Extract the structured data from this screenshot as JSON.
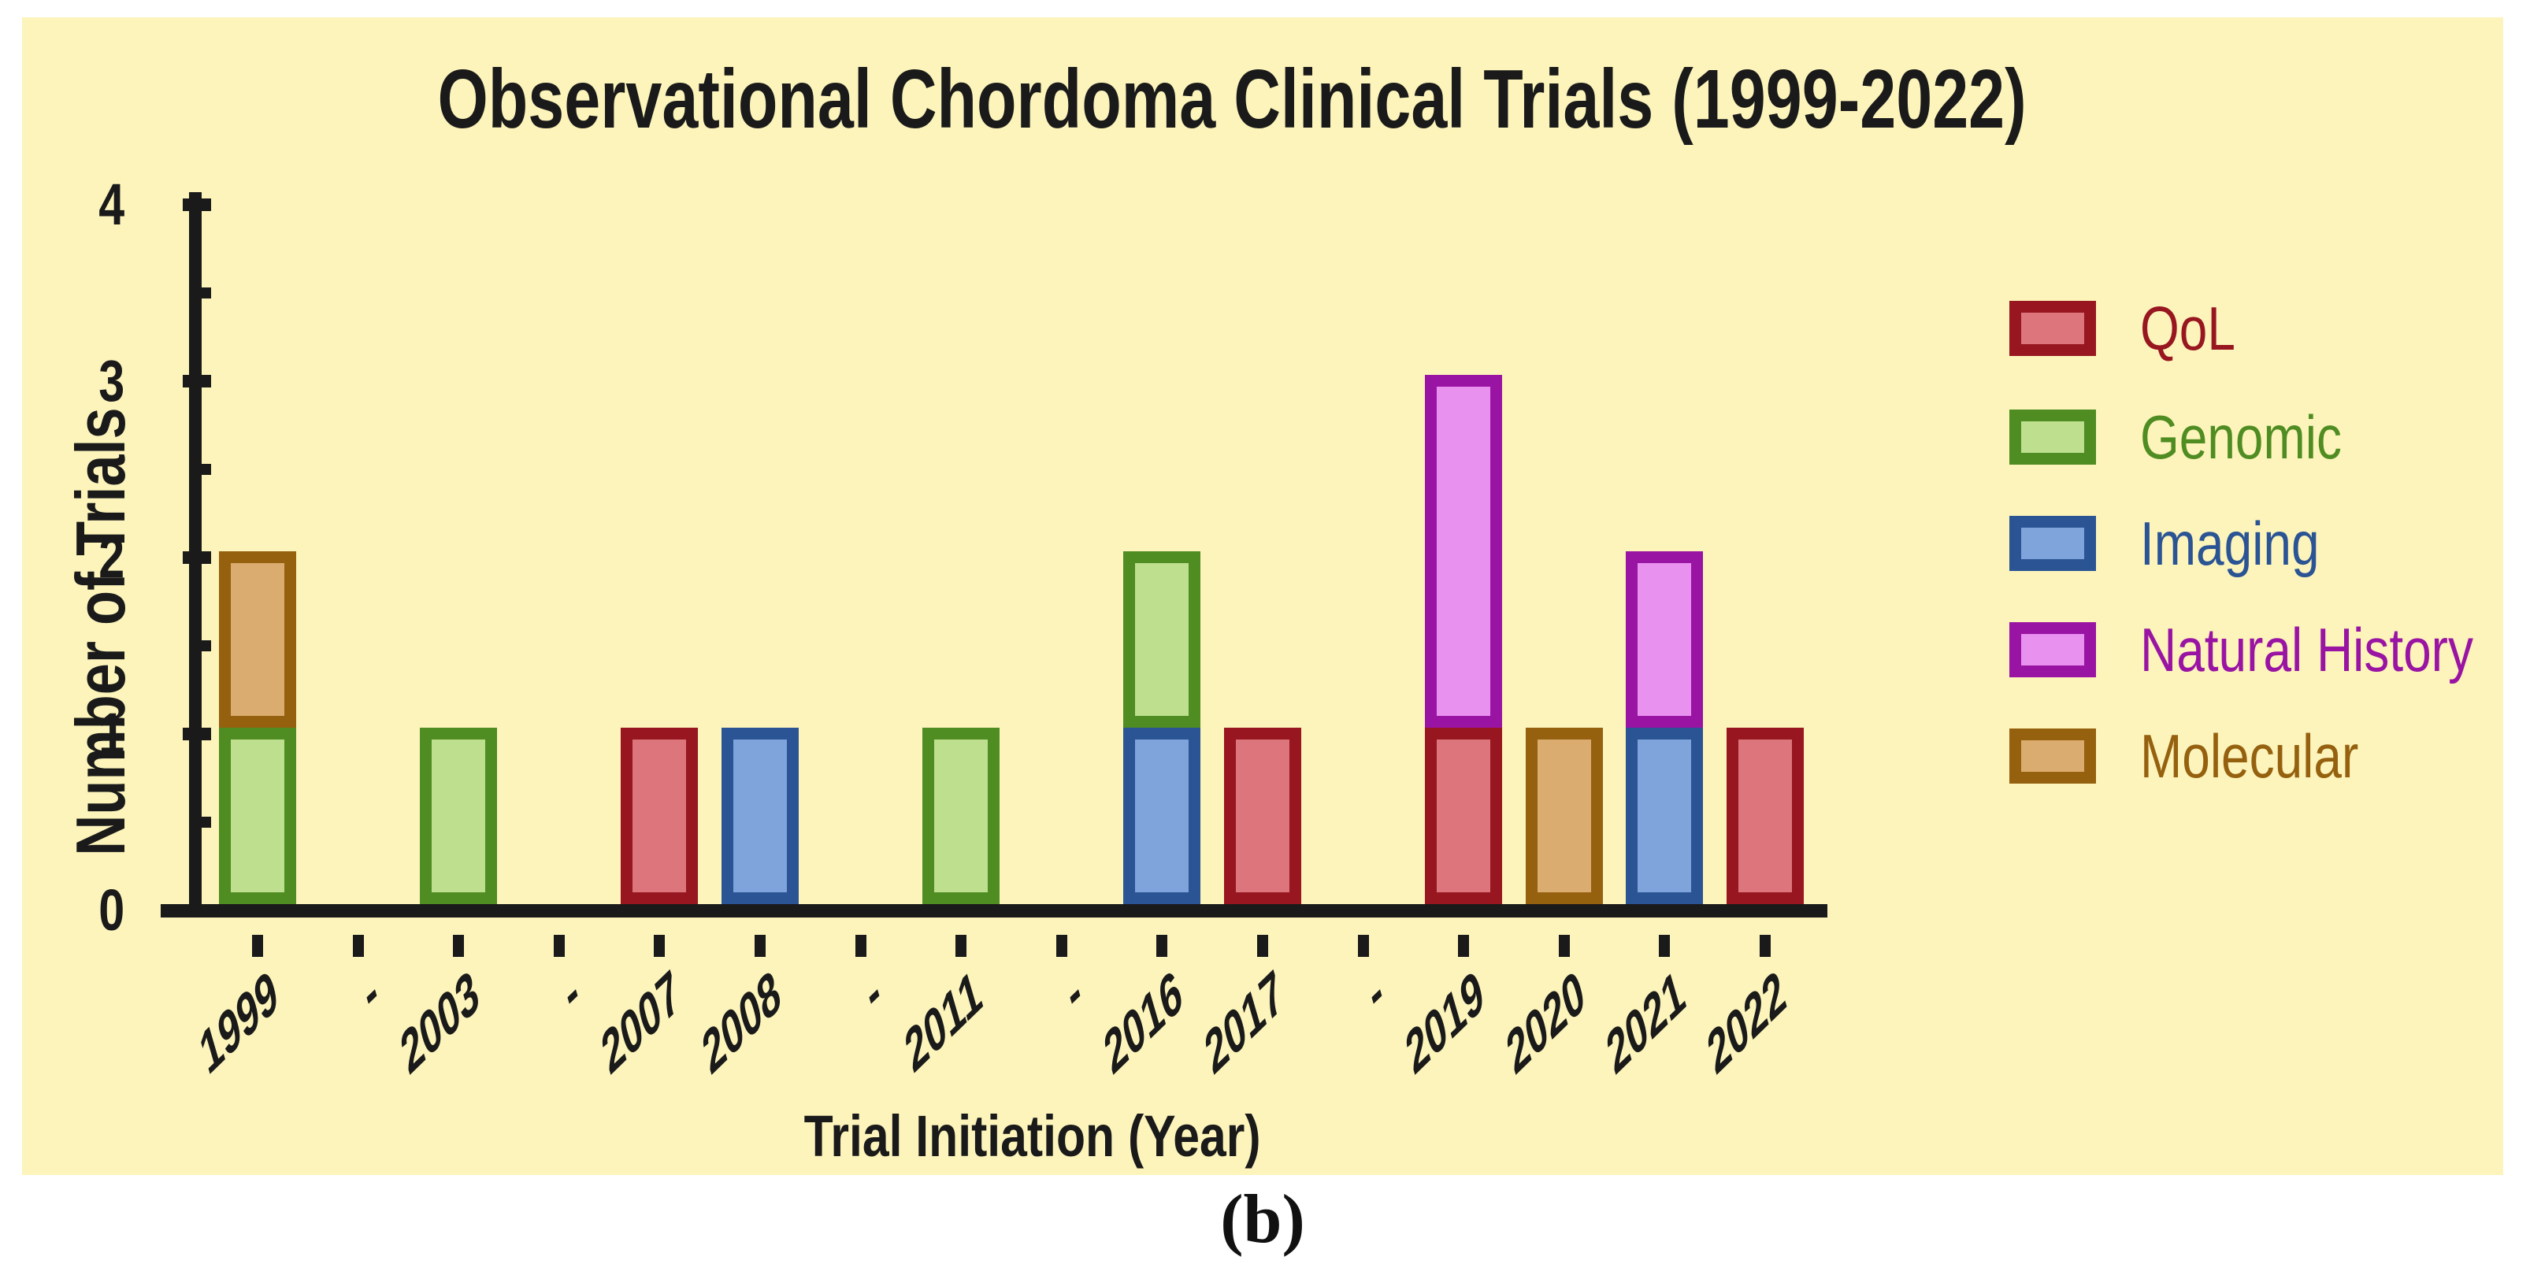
{
  "figure": {
    "caption": "(b)",
    "panel_background": "#FCF4BB",
    "outer_background": "#FFFFFF",
    "axis_color": "#1A1A1A"
  },
  "chart_data": {
    "type": "bar",
    "stacked": true,
    "title": "Observational Chordoma Clinical Trials (1999-2022)",
    "xlabel": "Trial Initiation (Year)",
    "ylabel": "Number of Trials",
    "ylim": [
      0,
      4
    ],
    "yticks": [
      0,
      1,
      2,
      3,
      4
    ],
    "y_minor_ticks": [
      0.5,
      1.5,
      2.5,
      3.5
    ],
    "grid": false,
    "legend_position": "right",
    "categories": [
      "1999",
      "-",
      "2003",
      "-",
      "2007",
      "2008",
      "-",
      "2011",
      "-",
      "2016",
      "2017",
      "-",
      "2019",
      "2020",
      "2021",
      "2022"
    ],
    "series": [
      {
        "name": "QoL",
        "fill": "#DC757C",
        "border": "#97161F",
        "values": [
          0,
          0,
          0,
          0,
          1,
          0,
          0,
          0,
          0,
          0,
          1,
          0,
          1,
          0,
          0,
          1
        ]
      },
      {
        "name": "Genomic",
        "fill": "#BDDF8E",
        "border": "#4F8C22",
        "values": [
          1,
          0,
          1,
          0,
          0,
          0,
          0,
          1,
          0,
          1,
          0,
          0,
          0,
          0,
          0,
          0
        ]
      },
      {
        "name": "Imaging",
        "fill": "#7FA3DB",
        "border": "#2B5494",
        "values": [
          0,
          0,
          0,
          0,
          0,
          1,
          0,
          0,
          0,
          1,
          0,
          0,
          0,
          0,
          1,
          0
        ]
      },
      {
        "name": "Natural History",
        "fill": "#E991EF",
        "border": "#9A14A4",
        "values": [
          0,
          0,
          0,
          0,
          0,
          0,
          0,
          0,
          0,
          0,
          0,
          0,
          2,
          0,
          1,
          0
        ]
      },
      {
        "name": "Molecular",
        "fill": "#DBAC6F",
        "border": "#95610F",
        "values": [
          1,
          0,
          0,
          0,
          0,
          0,
          0,
          0,
          0,
          0,
          0,
          0,
          0,
          1,
          0,
          0
        ]
      }
    ],
    "bars": [
      {
        "year": "1999",
        "segments": [
          {
            "series": "Genomic",
            "value": 1
          },
          {
            "series": "Molecular",
            "value": 1
          }
        ]
      },
      {
        "year": "2003",
        "segments": [
          {
            "series": "Genomic",
            "value": 1
          }
        ]
      },
      {
        "year": "2007",
        "segments": [
          {
            "series": "QoL",
            "value": 1
          }
        ]
      },
      {
        "year": "2008",
        "segments": [
          {
            "series": "Imaging",
            "value": 1
          }
        ]
      },
      {
        "year": "2011",
        "segments": [
          {
            "series": "Genomic",
            "value": 1
          }
        ]
      },
      {
        "year": "2016",
        "segments": [
          {
            "series": "Imaging",
            "value": 1
          },
          {
            "series": "Genomic",
            "value": 1
          }
        ]
      },
      {
        "year": "2017",
        "segments": [
          {
            "series": "QoL",
            "value": 1
          }
        ]
      },
      {
        "year": "2019",
        "segments": [
          {
            "series": "QoL",
            "value": 1
          },
          {
            "series": "Natural History",
            "value": 2
          }
        ]
      },
      {
        "year": "2020",
        "segments": [
          {
            "series": "Molecular",
            "value": 1
          }
        ]
      },
      {
        "year": "2021",
        "segments": [
          {
            "series": "Imaging",
            "value": 1
          },
          {
            "series": "Natural History",
            "value": 1
          }
        ]
      },
      {
        "year": "2022",
        "segments": [
          {
            "series": "QoL",
            "value": 1
          }
        ]
      }
    ]
  }
}
